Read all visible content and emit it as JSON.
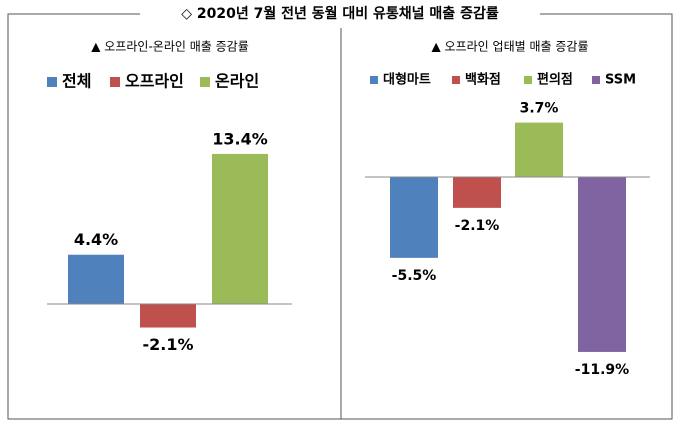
{
  "title": "◇ 2020년 7월 전년 동월 대비 유통채널 매출 증감률",
  "chart_data": [
    {
      "type": "bar",
      "title": "▲ 오프라인-온라인 매출 증감률",
      "categories": [
        "전체",
        "오프라인",
        "온라인"
      ],
      "values": [
        4.4,
        -2.1,
        13.4
      ],
      "value_labels": [
        "4.4%",
        "-2.1%",
        "13.4%"
      ],
      "colors": [
        "#4f81bd",
        "#c0504d",
        "#9bbb59"
      ]
    },
    {
      "type": "bar",
      "title": "▲ 오프라인 업태별 매출 증감률",
      "categories": [
        "대형마트",
        "백화점",
        "편의점",
        "SSM"
      ],
      "values": [
        -5.5,
        -2.1,
        3.7,
        -11.9
      ],
      "value_labels": [
        "-5.5%",
        "-2.1%",
        "3.7%",
        "-11.9%"
      ],
      "colors": [
        "#4f81bd",
        "#c0504d",
        "#9bbb59",
        "#8064a2"
      ]
    }
  ]
}
